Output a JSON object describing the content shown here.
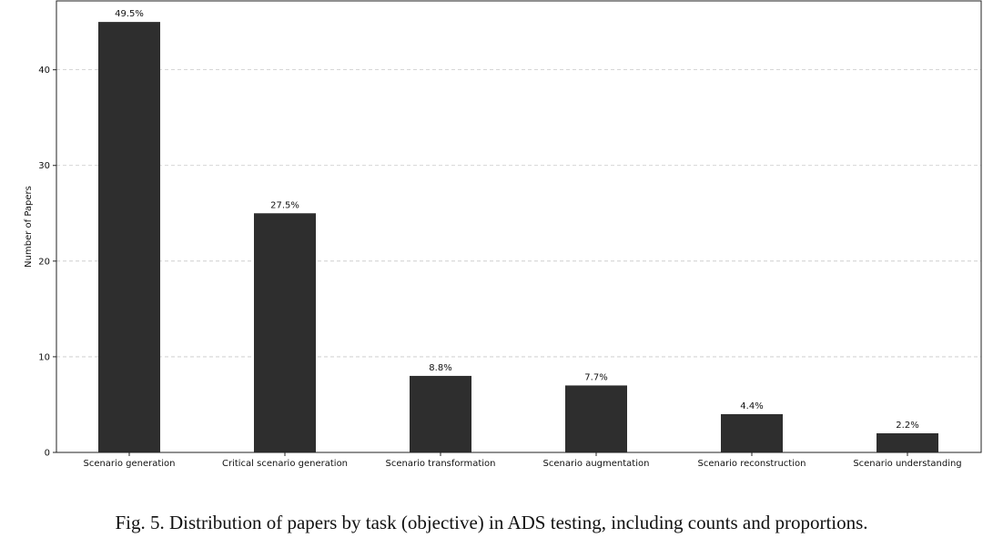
{
  "chart_data": {
    "type": "bar",
    "categories": [
      "Scenario generation",
      "Critical scenario generation",
      "Scenario transformation",
      "Scenario augmentation",
      "Scenario reconstruction",
      "Scenario understanding"
    ],
    "values": [
      45,
      25,
      8,
      7,
      4,
      2
    ],
    "data_labels": [
      "49.5%",
      "27.5%",
      "8.8%",
      "7.7%",
      "4.4%",
      "2.2%"
    ],
    "title": "",
    "xlabel": "",
    "ylabel": "Number of Papers",
    "ylim": [
      0,
      47.2
    ],
    "yticks": [
      0,
      10,
      20,
      30,
      40
    ],
    "grid": "horizontal-dashed",
    "bar_color": "#2e2e2e"
  },
  "caption": "Fig. 5.  Distribution of papers by task (objective) in ADS testing, including counts and proportions."
}
